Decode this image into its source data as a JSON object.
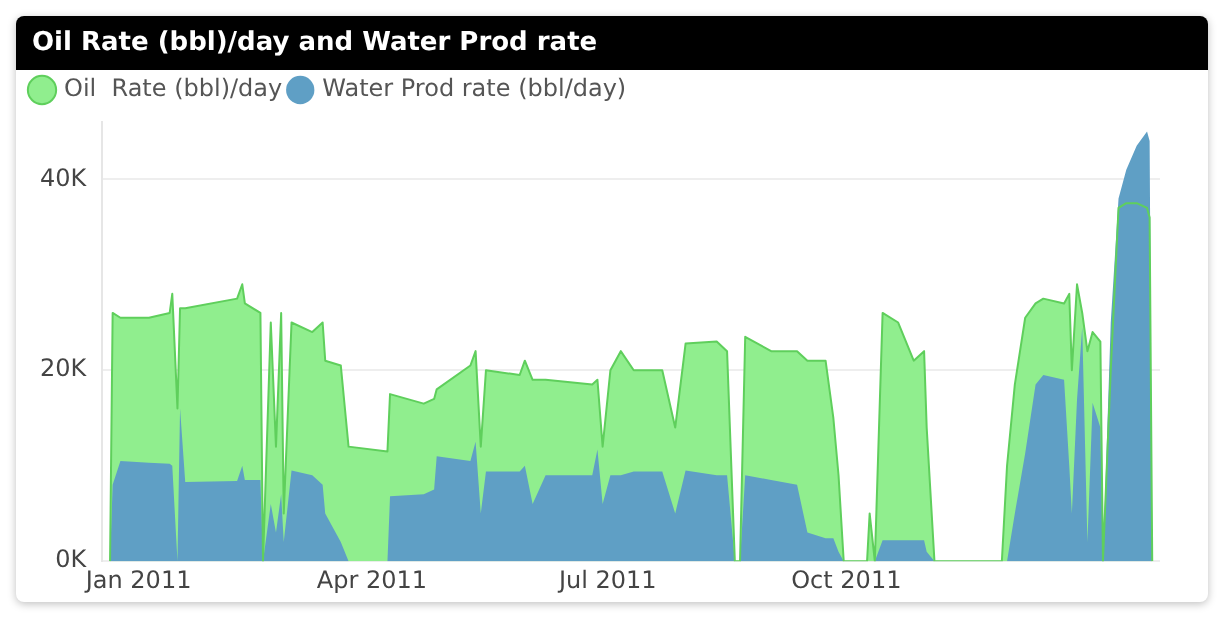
{
  "chart_data": {
    "type": "area",
    "title": "Oil Rate (bbl)/day and Water Prod rate",
    "x": [
      "2010-12-21",
      "2010-12-22",
      "2010-12-25",
      "2011-01-05",
      "2011-01-13",
      "2011-01-14",
      "2011-01-16",
      "2011-01-17",
      "2011-01-19",
      "2011-02-08",
      "2011-02-10",
      "2011-02-11",
      "2011-02-17",
      "2011-02-18",
      "2011-02-21",
      "2011-02-23",
      "2011-02-25",
      "2011-02-26",
      "2011-03-01",
      "2011-03-09",
      "2011-03-13",
      "2011-03-14",
      "2011-03-20",
      "2011-03-23",
      "2011-04-07",
      "2011-04-08",
      "2011-04-21",
      "2011-04-25",
      "2011-04-26",
      "2011-05-09",
      "2011-05-11",
      "2011-05-13",
      "2011-05-15",
      "2011-05-28",
      "2011-05-30",
      "2011-06-02",
      "2011-06-07",
      "2011-06-25",
      "2011-06-27",
      "2011-06-29",
      "2011-07-02",
      "2011-07-06",
      "2011-07-11",
      "2011-07-22",
      "2011-07-27",
      "2011-07-31",
      "2011-08-12",
      "2011-08-16",
      "2011-08-19",
      "2011-08-21",
      "2011-08-23",
      "2011-09-02",
      "2011-09-12",
      "2011-09-16",
      "2011-09-23",
      "2011-09-26",
      "2011-09-28",
      "2011-09-30",
      "2011-10-09",
      "2011-10-10",
      "2011-10-12",
      "2011-10-15",
      "2011-10-21",
      "2011-10-27",
      "2011-10-31",
      "2011-11-01",
      "2011-11-04",
      "2011-11-30",
      "2011-12-02",
      "2011-12-05",
      "2011-12-09",
      "2011-12-13",
      "2011-12-16",
      "2011-12-24",
      "2011-12-26",
      "2011-12-27",
      "2011-12-29",
      "2011-12-31",
      "2012-01-02",
      "2012-01-04",
      "2012-01-07",
      "2012-01-08",
      "2012-01-11",
      "2012-01-14",
      "2012-01-17",
      "2012-01-21",
      "2012-01-25",
      "2012-01-26",
      "2012-01-27"
    ],
    "series": [
      {
        "name": "Oil  Rate (bbl)/day",
        "color": "#90ee8e",
        "values": [
          0,
          26000,
          25500,
          25500,
          26000,
          28000,
          16000,
          26500,
          26500,
          27500,
          29000,
          27000,
          26000,
          0,
          25000,
          12000,
          26000,
          5000,
          25000,
          24000,
          25000,
          21000,
          20500,
          12000,
          11500,
          17500,
          16500,
          17000,
          18000,
          20500,
          22000,
          12000,
          20000,
          19500,
          21000,
          19000,
          19000,
          18500,
          19000,
          12000,
          20000,
          22000,
          20000,
          20000,
          14000,
          22800,
          23000,
          22000,
          0,
          0,
          23500,
          22000,
          22000,
          21000,
          21000,
          15000,
          9000,
          0,
          0,
          5000,
          0,
          26000,
          25000,
          21000,
          22000,
          14000,
          0,
          0,
          10000,
          18500,
          25500,
          27000,
          27500,
          27000,
          28000,
          20000,
          29000,
          26000,
          22000,
          24000,
          23000,
          0,
          20000,
          37000,
          37500,
          37500,
          37000,
          36000,
          0
        ]
      },
      {
        "name": "Water Prod rate (bbl/day)",
        "color": "#5f9fc5",
        "values": [
          0,
          8000,
          10500,
          10300,
          10200,
          10000,
          0,
          16000,
          8300,
          8400,
          10000,
          8500,
          8500,
          0,
          6000,
          3000,
          7000,
          2000,
          9500,
          9000,
          8000,
          5000,
          2000,
          0,
          0,
          6800,
          7000,
          7500,
          11000,
          10500,
          12500,
          5000,
          9400,
          9400,
          10000,
          6000,
          9000,
          9000,
          11700,
          6000,
          9000,
          9000,
          9400,
          9400,
          5000,
          9500,
          9000,
          9000,
          0,
          0,
          9000,
          8500,
          8000,
          3000,
          2400,
          2400,
          1000,
          0,
          0,
          0,
          0,
          2200,
          2200,
          2200,
          2200,
          1000,
          0,
          0,
          0,
          5000,
          11300,
          18500,
          19500,
          19000,
          10000,
          5000,
          17000,
          24500,
          2000,
          16600,
          14000,
          0,
          25000,
          38000,
          41000,
          43500,
          45000,
          44000,
          0
        ]
      }
    ],
    "xlim": [
      "2010-12-18",
      "2012-01-30"
    ],
    "xticks": [
      {
        "value": "2011-01-01",
        "label": "Jan 2011"
      },
      {
        "value": "2011-04-01",
        "label": "Apr 2011"
      },
      {
        "value": "2011-07-01",
        "label": "Jul 2011"
      },
      {
        "value": "2011-10-01",
        "label": "Oct 2011"
      }
    ],
    "ylim": [
      0,
      46000
    ],
    "yticks": [
      {
        "value": 0,
        "label": "0K"
      },
      {
        "value": 20000,
        "label": "20K"
      },
      {
        "value": 40000,
        "label": "40K"
      }
    ],
    "grid": "y",
    "legend": "top left",
    "marker": "none"
  }
}
